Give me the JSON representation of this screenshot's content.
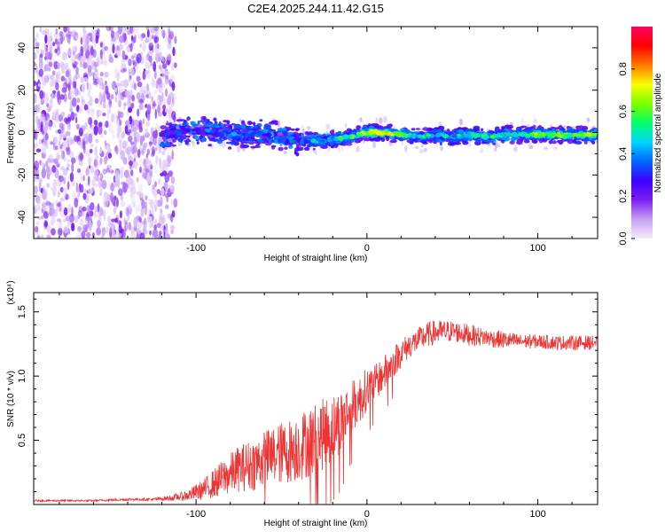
{
  "chart_data": [
    {
      "type": "heatmap",
      "title": "C2E4.2025.244.11.42.G15",
      "xlabel": "Height of straight line (km)",
      "ylabel": "Frequency (Hz)",
      "xlim": [
        -195,
        135
      ],
      "ylim": [
        -50,
        50
      ],
      "xticks": [
        -100,
        0,
        100
      ],
      "yticks": [
        -40,
        -20,
        0,
        20,
        40
      ],
      "colorbar": {
        "label": "Normalized spectral amplitude",
        "range": [
          0,
          1
        ],
        "ticks": [
          0.0,
          0.2,
          0.4,
          0.6,
          0.8
        ],
        "tick_labels": [
          "0.0",
          "0.2",
          "0.4",
          "0.6",
          "0.8"
        ],
        "colors": [
          "#f6ecfb",
          "#c59ff2",
          "#7d1ff0",
          "#3c00ff",
          "#0066ff",
          "#00d6ff",
          "#00ff6a",
          "#7dff00",
          "#f7ff00",
          "#ff7a00",
          "#ff0000",
          "#ff0060"
        ]
      },
      "noise_region_end_km": -118,
      "signal_trace": {
        "x": [
          -120,
          -110,
          -100,
          -90,
          -80,
          -70,
          -60,
          -50,
          -40,
          -30,
          -20,
          -10,
          0,
          10,
          20,
          30,
          40,
          50,
          60,
          70,
          80,
          90,
          100,
          110,
          120,
          135
        ],
        "y": [
          -2,
          0,
          1,
          0,
          -1,
          -1,
          0,
          -2,
          -4,
          -4,
          -3,
          -2,
          0,
          0,
          -1,
          -2,
          -1,
          -2,
          -1,
          -2,
          -1,
          -1,
          -1,
          -1,
          -1,
          -1
        ],
        "amplitude": [
          0.3,
          0.35,
          0.38,
          0.4,
          0.42,
          0.45,
          0.45,
          0.45,
          0.42,
          0.55,
          0.55,
          0.7,
          0.85,
          0.88,
          0.7,
          0.6,
          0.6,
          0.55,
          0.6,
          0.65,
          0.6,
          0.65,
          0.8,
          0.75,
          0.75,
          0.8
        ]
      }
    },
    {
      "type": "line",
      "xlabel": "Height of straight line (km)",
      "ylabel": "SNR (10 * v/v)",
      "y_multiplier": "(x10⁴)",
      "xlim": [
        -195,
        135
      ],
      "ylim": [
        0,
        1.65
      ],
      "xticks": [
        -100,
        0,
        100
      ],
      "yticks": [
        0.5,
        1.0,
        1.5
      ],
      "ytick_labels": [
        "0.5",
        "1.0",
        "1.5"
      ],
      "color": "#ee3333",
      "series": [
        {
          "name": "SNR",
          "x": [
            -195,
            -180,
            -160,
            -140,
            -125,
            -115,
            -105,
            -95,
            -85,
            -75,
            -65,
            -55,
            -45,
            -35,
            -25,
            -15,
            -10,
            -5,
            0,
            5,
            10,
            15,
            20,
            25,
            30,
            35,
            40,
            50,
            60,
            70,
            80,
            90,
            100,
            110,
            120,
            135
          ],
          "y": [
            0.03,
            0.03,
            0.03,
            0.04,
            0.04,
            0.05,
            0.07,
            0.12,
            0.2,
            0.28,
            0.32,
            0.38,
            0.42,
            0.48,
            0.55,
            0.65,
            0.75,
            0.8,
            0.9,
            0.95,
            1.02,
            1.1,
            1.18,
            1.24,
            1.28,
            1.32,
            1.34,
            1.35,
            1.32,
            1.3,
            1.28,
            1.27,
            1.27,
            1.26,
            1.26,
            1.26
          ],
          "noise": [
            0.005,
            0.005,
            0.005,
            0.008,
            0.008,
            0.015,
            0.03,
            0.06,
            0.1,
            0.13,
            0.15,
            0.17,
            0.18,
            0.2,
            0.2,
            0.18,
            0.15,
            0.14,
            0.12,
            0.1,
            0.1,
            0.09,
            0.08,
            0.07,
            0.07,
            0.07,
            0.07,
            0.06,
            0.06,
            0.05,
            0.05,
            0.04,
            0.04,
            0.04,
            0.04,
            0.04
          ]
        }
      ]
    }
  ]
}
